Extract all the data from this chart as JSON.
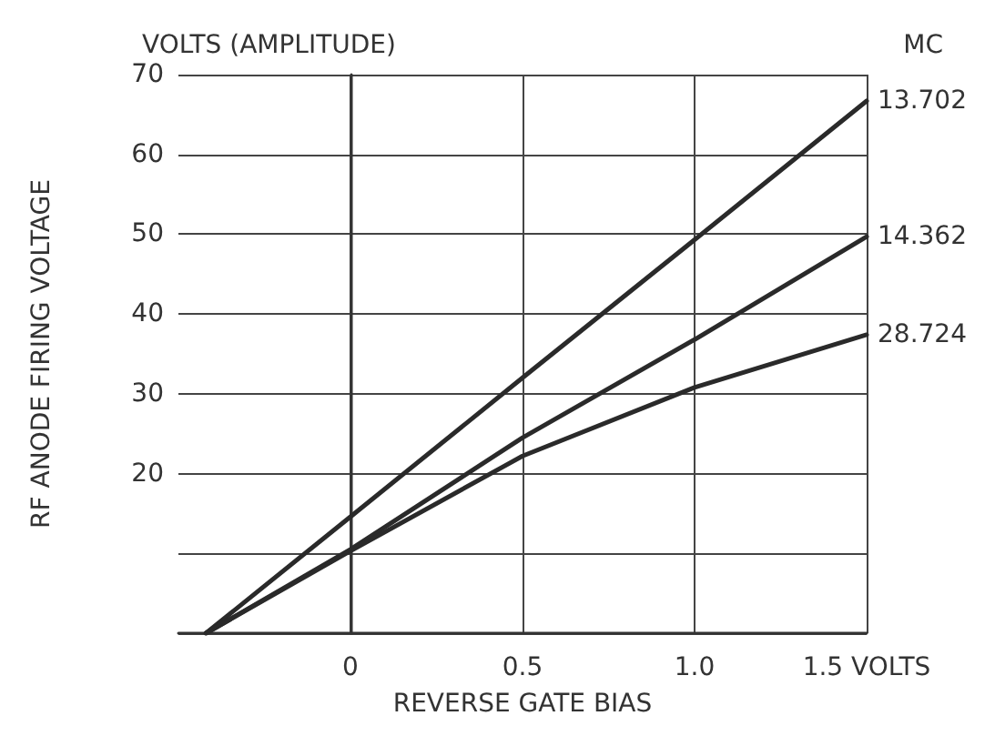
{
  "chart_data": {
    "type": "line",
    "xlabel": "REVERSE GATE BIAS",
    "ylabel": "RF ANODE FIRING VOLTAGE",
    "annotations": [
      "VOLTS (AMPLITUDE)"
    ],
    "legend_title": "MC",
    "xlim": [
      -0.5,
      1.5
    ],
    "xticks": [
      0,
      0.5,
      {
        "value": 1,
        "label": "1.0"
      },
      {
        "value": 1.5,
        "label": "1.5 VOLTS"
      }
    ],
    "ylim": [
      0,
      70
    ],
    "yticks": [
      {
        "value": 0,
        "label": null
      },
      {
        "value": 10,
        "label": null
      },
      20,
      30,
      40,
      50,
      60,
      70
    ],
    "grid": true,
    "legend": "right",
    "marker": "none",
    "line_style": "solid",
    "series": [
      {
        "name": "13.702",
        "color": "#2a2a2a",
        "x": [
          -0.42,
          0,
          0.5,
          1.0,
          1.5
        ],
        "values": [
          0,
          14.6,
          32,
          49.3,
          66.7
        ]
      },
      {
        "name": "14.362",
        "color": "#2a2a2a",
        "x": [
          -0.42,
          0,
          0.5,
          1.0,
          1.5
        ],
        "values": [
          0,
          10.5,
          24.5,
          36.8,
          49.7
        ]
      },
      {
        "name": "28.724",
        "color": "#2a2a2a",
        "x": [
          -0.42,
          0,
          0.5,
          1.0,
          1.5
        ],
        "values": [
          0,
          10.3,
          22.2,
          30.8,
          37.4
        ]
      }
    ]
  }
}
